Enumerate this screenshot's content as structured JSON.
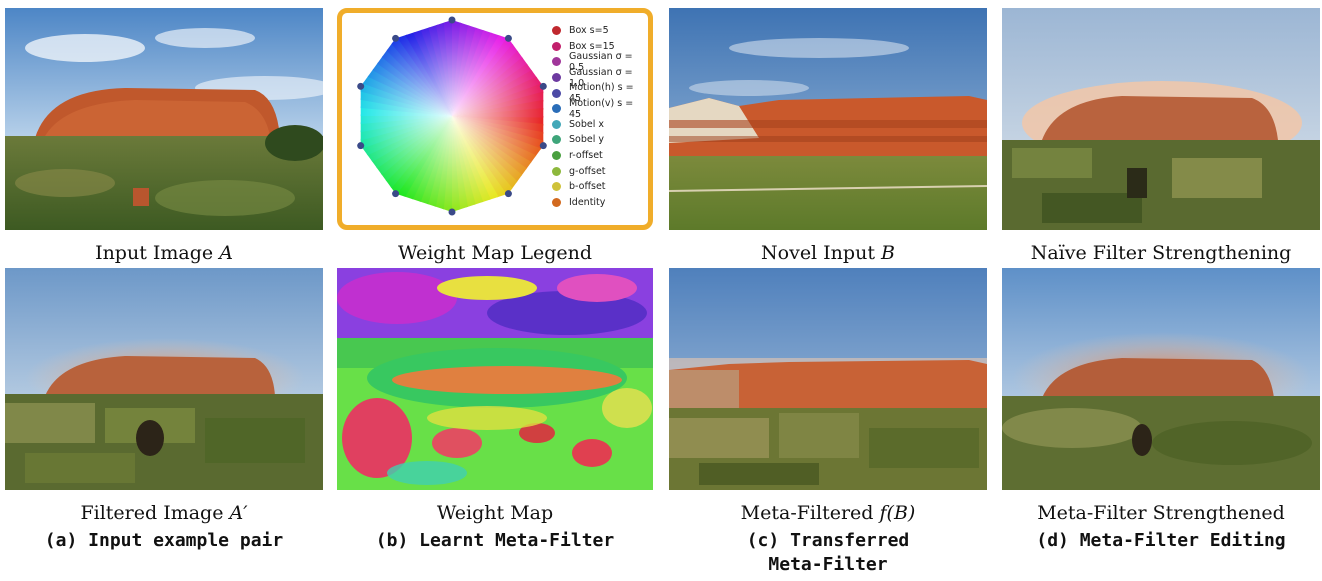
{
  "panels": {
    "input_image": {
      "caption_main": "Input Image ",
      "caption_var": "A"
    },
    "legend": {
      "caption": "Weight Map Legend",
      "items": [
        {
          "label": "Box s=5",
          "color": "#c0282f"
        },
        {
          "label": "Box s=15",
          "color": "#c21f6c"
        },
        {
          "label": "Gaussian σ = 0.5",
          "color": "#a0369a"
        },
        {
          "label": "Gaussian σ = 1.0",
          "color": "#6d3aa0"
        },
        {
          "label": "Motion(h) s = 45",
          "color": "#4c4aa6"
        },
        {
          "label": "Motion(v) s = 45",
          "color": "#2a6db8"
        },
        {
          "label": "Sobel x",
          "color": "#43a8b8"
        },
        {
          "label": "Sobel y",
          "color": "#3ea57a"
        },
        {
          "label": "r-offset",
          "color": "#4aa040"
        },
        {
          "label": "g-offset",
          "color": "#8db83c"
        },
        {
          "label": "b-offset",
          "color": "#cfc23a"
        },
        {
          "label": "Identity",
          "color": "#d2691e"
        }
      ]
    },
    "novel_input": {
      "caption_main": "Novel Input ",
      "caption_var": "B"
    },
    "naive": {
      "caption": "Naïve Filter Strengthening"
    },
    "filtered": {
      "caption_main": "Filtered Image ",
      "caption_var": "A′"
    },
    "weight_map": {
      "caption": "Weight Map"
    },
    "meta_filtered": {
      "caption_main": "Meta-Filtered ",
      "caption_var": "f(B)"
    },
    "strengthened": {
      "caption": "Meta-Filter Strengthened"
    }
  },
  "subcaptions": [
    {
      "label": "(a)",
      "text": "Input example pair"
    },
    {
      "label": "(b)",
      "text": "Learnt Meta-Filter"
    },
    {
      "label": "(c)",
      "text": "Transferred",
      "text2": "Meta-Filter"
    },
    {
      "label": "(d)",
      "text": "Meta-Filter Editing"
    }
  ]
}
